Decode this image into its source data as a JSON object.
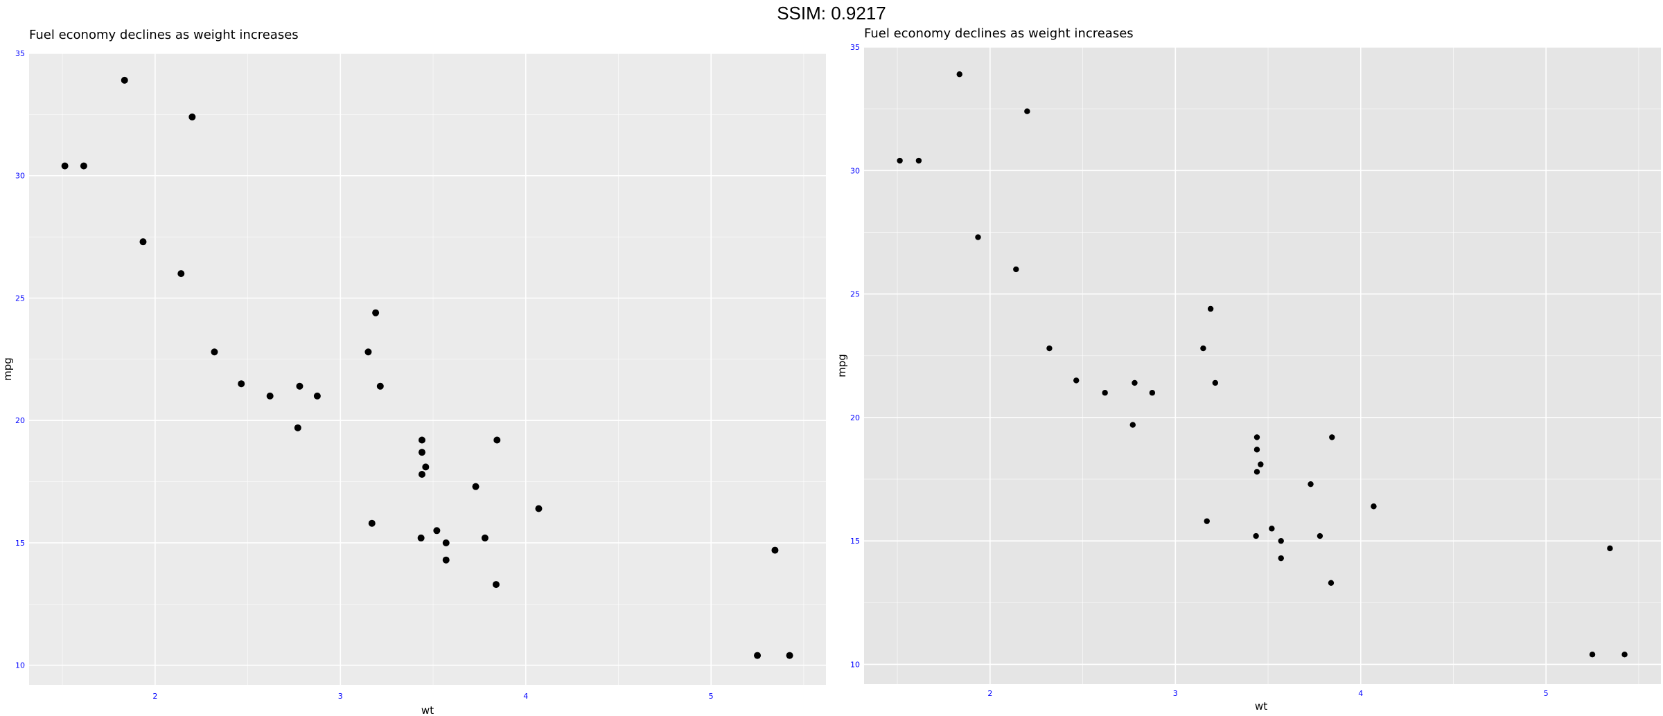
{
  "header": {
    "title": "SSIM: 0.9217"
  },
  "colors": {
    "tick_label": "#0000ff",
    "point": "#000000",
    "left_panel_bg": "#ebebeb",
    "right_panel_bg": "#e5e5e5",
    "grid": "#ffffff"
  },
  "chart_data": [
    {
      "type": "scatter",
      "title": "Fuel economy declines as weight increases",
      "xlabel": "wt",
      "ylabel": "mpg",
      "xlim": [
        1.32,
        5.62
      ],
      "ylim": [
        9.2,
        35
      ],
      "xticks": [
        2,
        3,
        4,
        5
      ],
      "xtick_labels": [
        "2",
        "3",
        "4",
        "5"
      ],
      "yticks": [
        10,
        15,
        20,
        25,
        30,
        35
      ],
      "ytick_labels": [
        "10",
        "15",
        "20",
        "25",
        "30",
        "35"
      ],
      "grid": true,
      "legend": "none",
      "x": [
        2.62,
        2.875,
        2.32,
        3.215,
        3.44,
        3.46,
        3.57,
        3.19,
        3.15,
        3.44,
        3.44,
        4.07,
        3.73,
        3.78,
        5.25,
        5.424,
        5.345,
        2.2,
        1.615,
        1.835,
        2.465,
        3.52,
        3.435,
        3.84,
        3.845,
        1.935,
        2.14,
        1.513,
        3.17,
        2.77,
        3.57,
        2.78
      ],
      "y": [
        21.0,
        21.0,
        22.8,
        21.4,
        18.7,
        18.1,
        14.3,
        24.4,
        22.8,
        19.2,
        17.8,
        16.4,
        17.3,
        15.2,
        10.4,
        10.4,
        14.7,
        32.4,
        30.4,
        33.9,
        21.5,
        15.5,
        15.2,
        13.3,
        19.2,
        27.3,
        26.0,
        30.4,
        15.8,
        19.7,
        15.0,
        21.4
      ]
    },
    {
      "type": "scatter",
      "title": "Fuel economy declines as weight increases",
      "xlabel": "wt",
      "ylabel": "mpg",
      "xlim": [
        1.32,
        5.62
      ],
      "ylim": [
        9.2,
        35
      ],
      "xticks": [
        2,
        3,
        4,
        5
      ],
      "xtick_labels": [
        "2",
        "3",
        "4",
        "5"
      ],
      "yticks": [
        10,
        15,
        20,
        25,
        30,
        35
      ],
      "ytick_labels": [
        "10",
        "15",
        "20",
        "25",
        "30",
        "35"
      ],
      "grid": true,
      "legend": "none",
      "x": [
        2.62,
        2.875,
        2.32,
        3.215,
        3.44,
        3.46,
        3.57,
        3.19,
        3.15,
        3.44,
        3.44,
        4.07,
        3.73,
        3.78,
        5.25,
        5.424,
        5.345,
        2.2,
        1.615,
        1.835,
        2.465,
        3.52,
        3.435,
        3.84,
        3.845,
        1.935,
        2.14,
        1.513,
        3.17,
        2.77,
        3.57,
        2.78
      ],
      "y": [
        21.0,
        21.0,
        22.8,
        21.4,
        18.7,
        18.1,
        14.3,
        24.4,
        22.8,
        19.2,
        17.8,
        16.4,
        17.3,
        15.2,
        10.4,
        10.4,
        14.7,
        32.4,
        30.4,
        33.9,
        21.5,
        15.5,
        15.2,
        13.3,
        19.2,
        27.3,
        26.0,
        30.4,
        15.8,
        19.7,
        15.0,
        21.4
      ]
    }
  ]
}
